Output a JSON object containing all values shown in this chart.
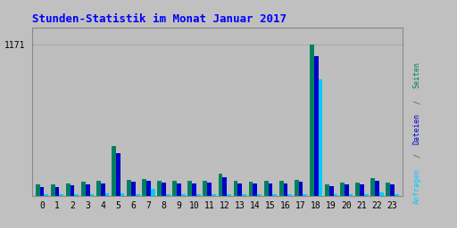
{
  "title": "Stunden-Statistik im Monat Januar 2017",
  "title_color": "#0000FF",
  "background_color": "#C0C0C0",
  "plot_bg_color": "#BEBEBE",
  "hours": [
    0,
    1,
    2,
    3,
    4,
    5,
    6,
    7,
    8,
    9,
    10,
    11,
    12,
    13,
    14,
    15,
    16,
    17,
    18,
    19,
    20,
    21,
    22,
    23
  ],
  "seiten": [
    90,
    88,
    100,
    110,
    115,
    385,
    125,
    130,
    120,
    115,
    115,
    118,
    170,
    115,
    110,
    115,
    115,
    125,
    1171,
    90,
    105,
    105,
    140,
    105
  ],
  "dateien": [
    72,
    72,
    85,
    90,
    95,
    330,
    110,
    115,
    105,
    100,
    100,
    102,
    148,
    100,
    95,
    100,
    100,
    110,
    1080,
    78,
    90,
    90,
    118,
    90
  ],
  "anfragen": [
    15,
    15,
    18,
    18,
    22,
    22,
    18,
    58,
    18,
    18,
    15,
    15,
    18,
    15,
    15,
    15,
    15,
    15,
    900,
    15,
    15,
    15,
    30,
    15
  ],
  "seiten_color": "#008060",
  "dateien_color": "#0000CC",
  "anfragen_color": "#00CCFF",
  "ylim_max": 1300,
  "ytick_val": 1171,
  "grid_color": "#AAAAAA",
  "bar_width": 0.28
}
